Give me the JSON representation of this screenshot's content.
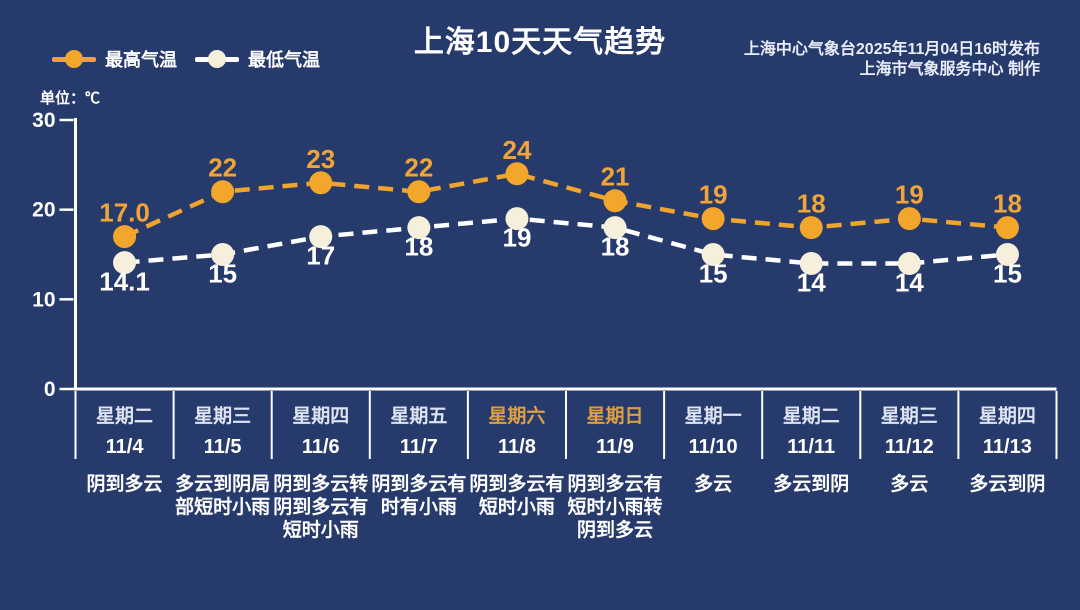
{
  "header": {
    "source_line1": "上海中心气象台2025年11月04日16时发布",
    "source_line2": "上海市气象服务中心 制作"
  },
  "chart_data": {
    "type": "line",
    "title": "上海10天天气趋势",
    "unit_label": "单位：℃",
    "ylim": [
      0,
      30
    ],
    "yticks": [
      30,
      20,
      10,
      0
    ],
    "grid": false,
    "legend_position": "top-left",
    "line_style": "dashed",
    "background_color": "#273A6C",
    "axis_color": "#FFFFFF",
    "weekday_label_color": "#DDE3F2",
    "weekend_label_color": "#DC9F43",
    "categories": [
      {
        "weekday": "星期二",
        "date": "11/4",
        "weekend": false,
        "forecast_lines": [
          "阴到多云"
        ]
      },
      {
        "weekday": "星期三",
        "date": "11/5",
        "weekend": false,
        "forecast_lines": [
          "多云到阴局",
          "部短时小雨"
        ]
      },
      {
        "weekday": "星期四",
        "date": "11/6",
        "weekend": false,
        "forecast_lines": [
          "阴到多云转",
          "阴到多云有",
          "短时小雨"
        ]
      },
      {
        "weekday": "星期五",
        "date": "11/7",
        "weekend": false,
        "forecast_lines": [
          "阴到多云有",
          "时有小雨"
        ]
      },
      {
        "weekday": "星期六",
        "date": "11/8",
        "weekend": true,
        "forecast_lines": [
          "阴到多云有",
          "短时小雨"
        ]
      },
      {
        "weekday": "星期日",
        "date": "11/9",
        "weekend": true,
        "forecast_lines": [
          "阴到多云有",
          "短时小雨转",
          "阴到多云"
        ]
      },
      {
        "weekday": "星期一",
        "date": "11/10",
        "weekend": false,
        "forecast_lines": [
          "多云"
        ]
      },
      {
        "weekday": "星期二",
        "date": "11/11",
        "weekend": false,
        "forecast_lines": [
          "多云到阴"
        ]
      },
      {
        "weekday": "星期三",
        "date": "11/12",
        "weekend": false,
        "forecast_lines": [
          "多云"
        ]
      },
      {
        "weekday": "星期四",
        "date": "11/13",
        "weekend": false,
        "forecast_lines": [
          "多云到阴"
        ]
      }
    ],
    "series": [
      {
        "name": "最高气温",
        "line_color": "#EFA42E",
        "dot_color": "#F2A72C",
        "label_color": "#EFA538",
        "values": [
          17.0,
          22,
          23,
          22,
          24,
          21,
          19,
          18,
          19,
          18
        ],
        "labels": [
          "17.0",
          "22",
          "23",
          "22",
          "24",
          "21",
          "19",
          "18",
          "19",
          "18"
        ]
      },
      {
        "name": "最低气温",
        "line_color": "#FFFFFF",
        "dot_color": "#F6EFDC",
        "label_color": "#FFFFFF",
        "values": [
          14.1,
          15,
          17,
          18,
          19,
          18,
          15,
          14,
          14,
          15
        ],
        "labels": [
          "14.1",
          "15",
          "17",
          "18",
          "19",
          "18",
          "15",
          "14",
          "14",
          "15"
        ]
      }
    ]
  }
}
